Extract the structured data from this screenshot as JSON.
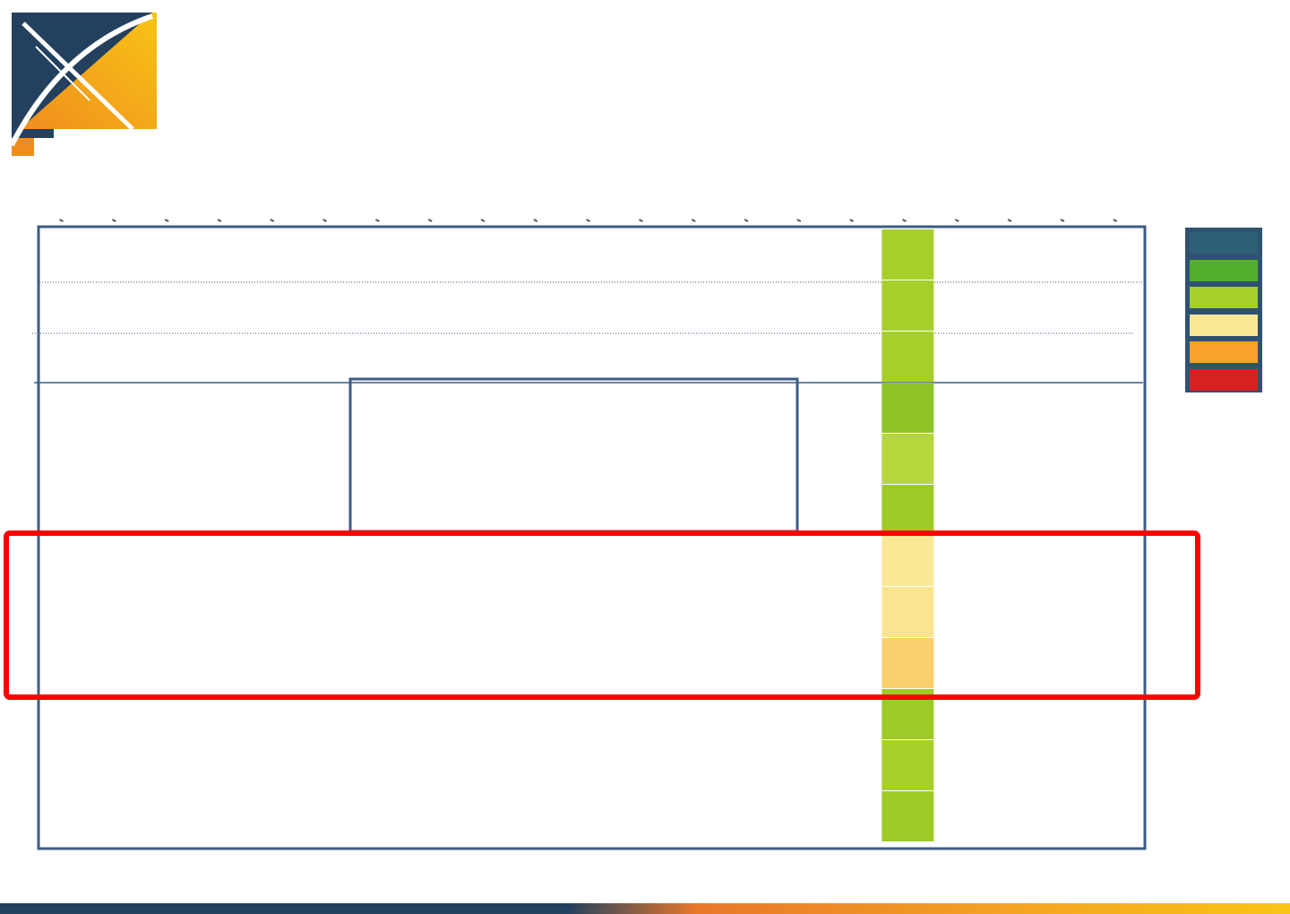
{
  "colors": {
    "navy": "#23405e",
    "frame_blue": "#3b5c86",
    "highlight_red": "#ff0000",
    "dark_green": "#52ae2c",
    "light_green": "#a6cf2a",
    "pale_yellow": "#fbe897",
    "orange": "#f9a22a",
    "red": "#d92020",
    "logo_orange": "#f08c1e",
    "logo_yellow": "#f8c416"
  },
  "logo": {
    "icon": "x-mark-logo-icon"
  },
  "legend": {
    "items": [
      {
        "color": "#2f5f76"
      },
      {
        "color": "#52ae2c"
      },
      {
        "color": "#a6cf2a"
      },
      {
        "color": "#fbe897"
      },
      {
        "color": "#f9a22a"
      },
      {
        "color": "#d92020"
      }
    ]
  },
  "chart_data": {
    "type": "heatmap",
    "column_count": 21,
    "highlighted_column": 17,
    "rows": [
      {
        "index": 1,
        "color": "#a6cf2a"
      },
      {
        "index": 2,
        "color": "#a6cf2a"
      },
      {
        "index": 3,
        "color": "#a6cf2a"
      },
      {
        "index": 4,
        "color": "#8fc428"
      },
      {
        "index": 5,
        "color": "#b5d63c"
      },
      {
        "index": 6,
        "color": "#9dcb26"
      },
      {
        "index": 7,
        "color": "#fbe897"
      },
      {
        "index": 8,
        "color": "#fbe48f"
      },
      {
        "index": 9,
        "color": "#fccf6e"
      },
      {
        "index": 10,
        "color": "#9dcb26"
      },
      {
        "index": 11,
        "color": "#a6cf2a"
      },
      {
        "index": 12,
        "color": "#9dcb26"
      }
    ],
    "grid": true,
    "legend_position": "right"
  }
}
